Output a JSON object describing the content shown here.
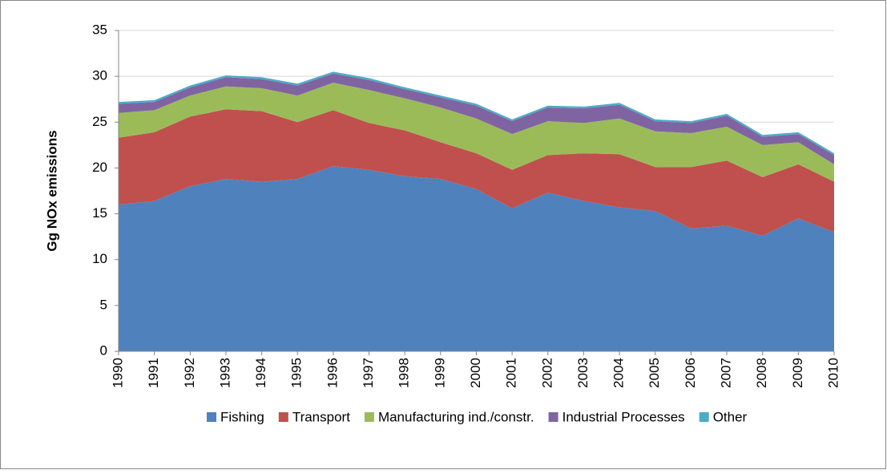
{
  "chart_data": {
    "type": "stacked_area",
    "y_label": "Gg NOx emissions",
    "categories": [
      "1990",
      "1991",
      "1992",
      "1993",
      "1994",
      "1995",
      "1996",
      "1997",
      "1998",
      "1999",
      "2000",
      "2001",
      "2002",
      "2003",
      "2004",
      "2005",
      "2006",
      "2007",
      "2008",
      "2009",
      "2010"
    ],
    "series": [
      {
        "name": "Fishing",
        "color": "#4f81bd",
        "values": [
          16.0,
          16.4,
          18.0,
          18.8,
          18.5,
          18.8,
          20.2,
          19.8,
          19.1,
          18.8,
          17.7,
          15.6,
          17.3,
          16.4,
          15.7,
          15.3,
          13.4,
          13.7,
          12.6,
          14.5,
          13.0
        ]
      },
      {
        "name": "Transport",
        "color": "#c0504d",
        "values": [
          7.3,
          7.5,
          7.6,
          7.6,
          7.7,
          6.2,
          6.1,
          5.1,
          5.0,
          4.0,
          3.9,
          4.2,
          4.1,
          5.2,
          5.8,
          4.8,
          6.7,
          7.1,
          6.4,
          5.9,
          5.5
        ]
      },
      {
        "name": "Manufacturing ind./constr.",
        "color": "#9bbb59",
        "values": [
          2.7,
          2.4,
          2.3,
          2.5,
          2.5,
          2.9,
          3.0,
          3.6,
          3.5,
          3.8,
          3.8,
          3.9,
          3.7,
          3.3,
          3.9,
          3.9,
          3.7,
          3.7,
          3.5,
          2.4,
          1.9
        ]
      },
      {
        "name": "Industrial Processes",
        "color": "#8064a2",
        "values": [
          1.0,
          0.9,
          0.9,
          1.0,
          1.0,
          1.1,
          1.0,
          1.1,
          1.0,
          1.1,
          1.4,
          1.4,
          1.5,
          1.6,
          1.5,
          1.1,
          1.1,
          1.2,
          0.9,
          0.9,
          1.0
        ]
      },
      {
        "name": "Other",
        "color": "#4bacc6",
        "values": [
          0.2,
          0.2,
          0.2,
          0.2,
          0.2,
          0.2,
          0.2,
          0.2,
          0.2,
          0.2,
          0.2,
          0.2,
          0.2,
          0.2,
          0.2,
          0.2,
          0.2,
          0.2,
          0.2,
          0.2,
          0.2
        ]
      }
    ],
    "ylim": [
      0,
      35
    ],
    "yticks": [
      0,
      5,
      10,
      15,
      20,
      25,
      30,
      35
    ],
    "grid": true,
    "legend": "bottom"
  }
}
